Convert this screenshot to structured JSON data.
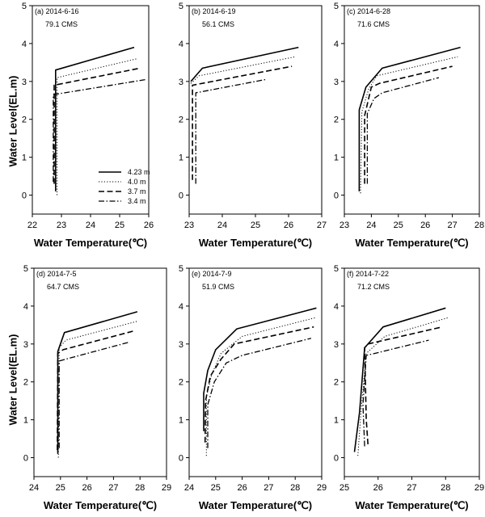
{
  "figure": {
    "y_axis_label": "Water Level(EL.m)",
    "x_axis_label": "Water Temperature(℃)"
  },
  "chart_data": [
    {
      "type": "line",
      "panel_label": "(a) 2014-6-16",
      "flow": "79.1 CMS",
      "xlim": [
        22,
        26
      ],
      "xticks": [
        22,
        23,
        24,
        25,
        26
      ],
      "ylim": [
        -0.5,
        5
      ],
      "yticks": [
        0,
        1,
        2,
        3,
        4,
        5
      ],
      "grid": false,
      "legend_location": "lower-right",
      "series": [
        {
          "name": "4.23 m",
          "style": "solid",
          "points": [
            [
              22.8,
              0.1
            ],
            [
              22.8,
              3.3
            ],
            [
              25.5,
              3.9
            ]
          ]
        },
        {
          "name": "4.0 m",
          "style": "dotted",
          "points": [
            [
              22.85,
              0.0
            ],
            [
              22.85,
              3.1
            ],
            [
              25.6,
              3.6
            ]
          ]
        },
        {
          "name": "3.7 m",
          "style": "dashed",
          "points": [
            [
              22.75,
              0.3
            ],
            [
              22.75,
              2.9
            ],
            [
              25.7,
              3.35
            ]
          ]
        },
        {
          "name": "3.4 m",
          "style": "dashdot",
          "points": [
            [
              22.72,
              0.35
            ],
            [
              22.72,
              2.65
            ],
            [
              25.9,
              3.05
            ]
          ]
        }
      ]
    },
    {
      "type": "line",
      "panel_label": "(b) 2014-6-19",
      "flow": "56.1 CMS",
      "xlim": [
        23,
        27
      ],
      "xticks": [
        23,
        24,
        25,
        26,
        27
      ],
      "ylim": [
        -0.5,
        5
      ],
      "yticks": [
        0,
        1,
        2,
        3,
        4,
        5
      ],
      "grid": false,
      "series": [
        {
          "name": "4.23 m",
          "style": "solid",
          "points": [
            [
              23.05,
              3.0
            ],
            [
              23.4,
              3.35
            ],
            [
              26.3,
              3.9
            ]
          ]
        },
        {
          "name": "4.0 m",
          "style": "dotted",
          "points": [
            [
              23.05,
              2.95
            ],
            [
              23.3,
              3.15
            ],
            [
              26.2,
              3.65
            ]
          ]
        },
        {
          "name": "3.7 m",
          "style": "dashed",
          "points": [
            [
              23.1,
              0.4
            ],
            [
              23.1,
              2.9
            ],
            [
              26.1,
              3.4
            ]
          ]
        },
        {
          "name": "3.4 m",
          "style": "dashdot",
          "points": [
            [
              23.2,
              0.3
            ],
            [
              23.2,
              2.7
            ],
            [
              25.3,
              3.05
            ]
          ]
        }
      ]
    },
    {
      "type": "line",
      "panel_label": "(c) 2014-6-28",
      "flow": "71.6 CMS",
      "xlim": [
        23,
        28
      ],
      "xticks": [
        23,
        24,
        25,
        26,
        27,
        28
      ],
      "ylim": [
        -0.5,
        5
      ],
      "yticks": [
        0,
        1,
        2,
        3,
        4,
        5
      ],
      "grid": false,
      "series": [
        {
          "name": "4.23 m",
          "style": "solid",
          "points": [
            [
              23.55,
              0.1
            ],
            [
              23.55,
              2.25
            ],
            [
              23.8,
              2.85
            ],
            [
              24.4,
              3.35
            ],
            [
              27.3,
              3.9
            ]
          ]
        },
        {
          "name": "4.0 m",
          "style": "dotted",
          "points": [
            [
              23.6,
              0.05
            ],
            [
              23.65,
              2.2
            ],
            [
              23.9,
              2.8
            ],
            [
              24.2,
              3.15
            ],
            [
              27.2,
              3.65
            ]
          ]
        },
        {
          "name": "3.7 m",
          "style": "dashed",
          "points": [
            [
              23.75,
              0.3
            ],
            [
              23.75,
              2.1
            ],
            [
              24.0,
              2.85
            ],
            [
              24.3,
              2.95
            ],
            [
              27.0,
              3.4
            ]
          ]
        },
        {
          "name": "3.4 m",
          "style": "dashdot",
          "points": [
            [
              23.85,
              0.3
            ],
            [
              23.85,
              2.15
            ],
            [
              24.1,
              2.55
            ],
            [
              24.4,
              2.7
            ],
            [
              26.5,
              3.1
            ]
          ]
        }
      ]
    },
    {
      "type": "line",
      "panel_label": "(d) 2014-7-5",
      "flow": "64.7 CMS",
      "xlim": [
        24,
        29
      ],
      "xticks": [
        24,
        25,
        26,
        27,
        28,
        29
      ],
      "ylim": [
        -0.5,
        5
      ],
      "yticks": [
        0,
        1,
        2,
        3,
        4,
        5
      ],
      "grid": false,
      "series": [
        {
          "name": "4.23 m",
          "style": "solid",
          "points": [
            [
              24.9,
              0.1
            ],
            [
              24.9,
              2.8
            ],
            [
              25.15,
              3.3
            ],
            [
              27.9,
              3.85
            ]
          ]
        },
        {
          "name": "4.0 m",
          "style": "dotted",
          "points": [
            [
              24.92,
              0.0
            ],
            [
              24.95,
              2.9
            ],
            [
              25.2,
              3.1
            ],
            [
              27.9,
              3.6
            ]
          ]
        },
        {
          "name": "3.7 m",
          "style": "dashed",
          "points": [
            [
              24.88,
              0.2
            ],
            [
              24.9,
              2.75
            ],
            [
              25.1,
              2.85
            ],
            [
              27.8,
              3.35
            ]
          ]
        },
        {
          "name": "3.4 m",
          "style": "dashdot",
          "points": [
            [
              24.95,
              0.25
            ],
            [
              24.95,
              2.55
            ],
            [
              25.2,
              2.6
            ],
            [
              27.6,
              3.05
            ]
          ]
        }
      ]
    },
    {
      "type": "line",
      "panel_label": "(e) 2014-7-9",
      "flow": "51.9 CMS",
      "xlim": [
        24,
        29
      ],
      "xticks": [
        24,
        25,
        26,
        27,
        28,
        29
      ],
      "ylim": [
        -0.5,
        5
      ],
      "yticks": [
        0,
        1,
        2,
        3,
        4,
        5
      ],
      "grid": false,
      "series": [
        {
          "name": "4.23 m",
          "style": "solid",
          "points": [
            [
              24.55,
              0.7
            ],
            [
              24.55,
              1.7
            ],
            [
              24.7,
              2.3
            ],
            [
              25.0,
              2.85
            ],
            [
              25.8,
              3.4
            ],
            [
              28.8,
              3.95
            ]
          ]
        },
        {
          "name": "4.0 m",
          "style": "dotted",
          "points": [
            [
              24.65,
              0.05
            ],
            [
              24.65,
              1.6
            ],
            [
              24.85,
              2.2
            ],
            [
              25.2,
              2.75
            ],
            [
              26.0,
              3.2
            ],
            [
              28.8,
              3.7
            ]
          ]
        },
        {
          "name": "3.7 m",
          "style": "dashed",
          "points": [
            [
              24.6,
              0.4
            ],
            [
              24.62,
              1.5
            ],
            [
              24.8,
              2.15
            ],
            [
              25.2,
              2.6
            ],
            [
              25.7,
              3.0
            ],
            [
              28.7,
              3.45
            ]
          ]
        },
        {
          "name": "3.4 m",
          "style": "dashdot",
          "points": [
            [
              24.7,
              0.25
            ],
            [
              24.7,
              1.4
            ],
            [
              24.95,
              2.0
            ],
            [
              25.4,
              2.5
            ],
            [
              26.0,
              2.7
            ],
            [
              28.6,
              3.15
            ]
          ]
        }
      ]
    },
    {
      "type": "line",
      "panel_label": "(f) 2014-7-22",
      "flow": "71.2 CMS",
      "xlim": [
        25,
        29
      ],
      "xticks": [
        25,
        26,
        27,
        28,
        29
      ],
      "ylim": [
        -0.5,
        5
      ],
      "yticks": [
        0,
        1,
        2,
        3,
        4,
        5
      ],
      "grid": false,
      "series": [
        {
          "name": "4.23 m",
          "style": "solid",
          "points": [
            [
              25.3,
              0.15
            ],
            [
              25.45,
              1.2
            ],
            [
              25.6,
              2.9
            ],
            [
              26.15,
              3.45
            ],
            [
              28.0,
              3.95
            ]
          ]
        },
        {
          "name": "4.0 m",
          "style": "dotted",
          "points": [
            [
              25.4,
              0.05
            ],
            [
              25.5,
              1.3
            ],
            [
              25.65,
              2.75
            ],
            [
              26.2,
              3.2
            ],
            [
              28.1,
              3.7
            ]
          ]
        },
        {
          "name": "3.7 m",
          "style": "dashed",
          "points": [
            [
              25.7,
              0.35
            ],
            [
              25.65,
              1.0
            ],
            [
              25.6,
              2.9
            ],
            [
              25.7,
              3.0
            ],
            [
              27.9,
              3.45
            ]
          ]
        },
        {
          "name": "3.4 m",
          "style": "dashdot",
          "points": [
            [
              25.6,
              0.3
            ],
            [
              25.55,
              1.4
            ],
            [
              25.65,
              2.7
            ],
            [
              25.9,
              2.75
            ],
            [
              27.5,
              3.1
            ]
          ]
        }
      ]
    }
  ]
}
